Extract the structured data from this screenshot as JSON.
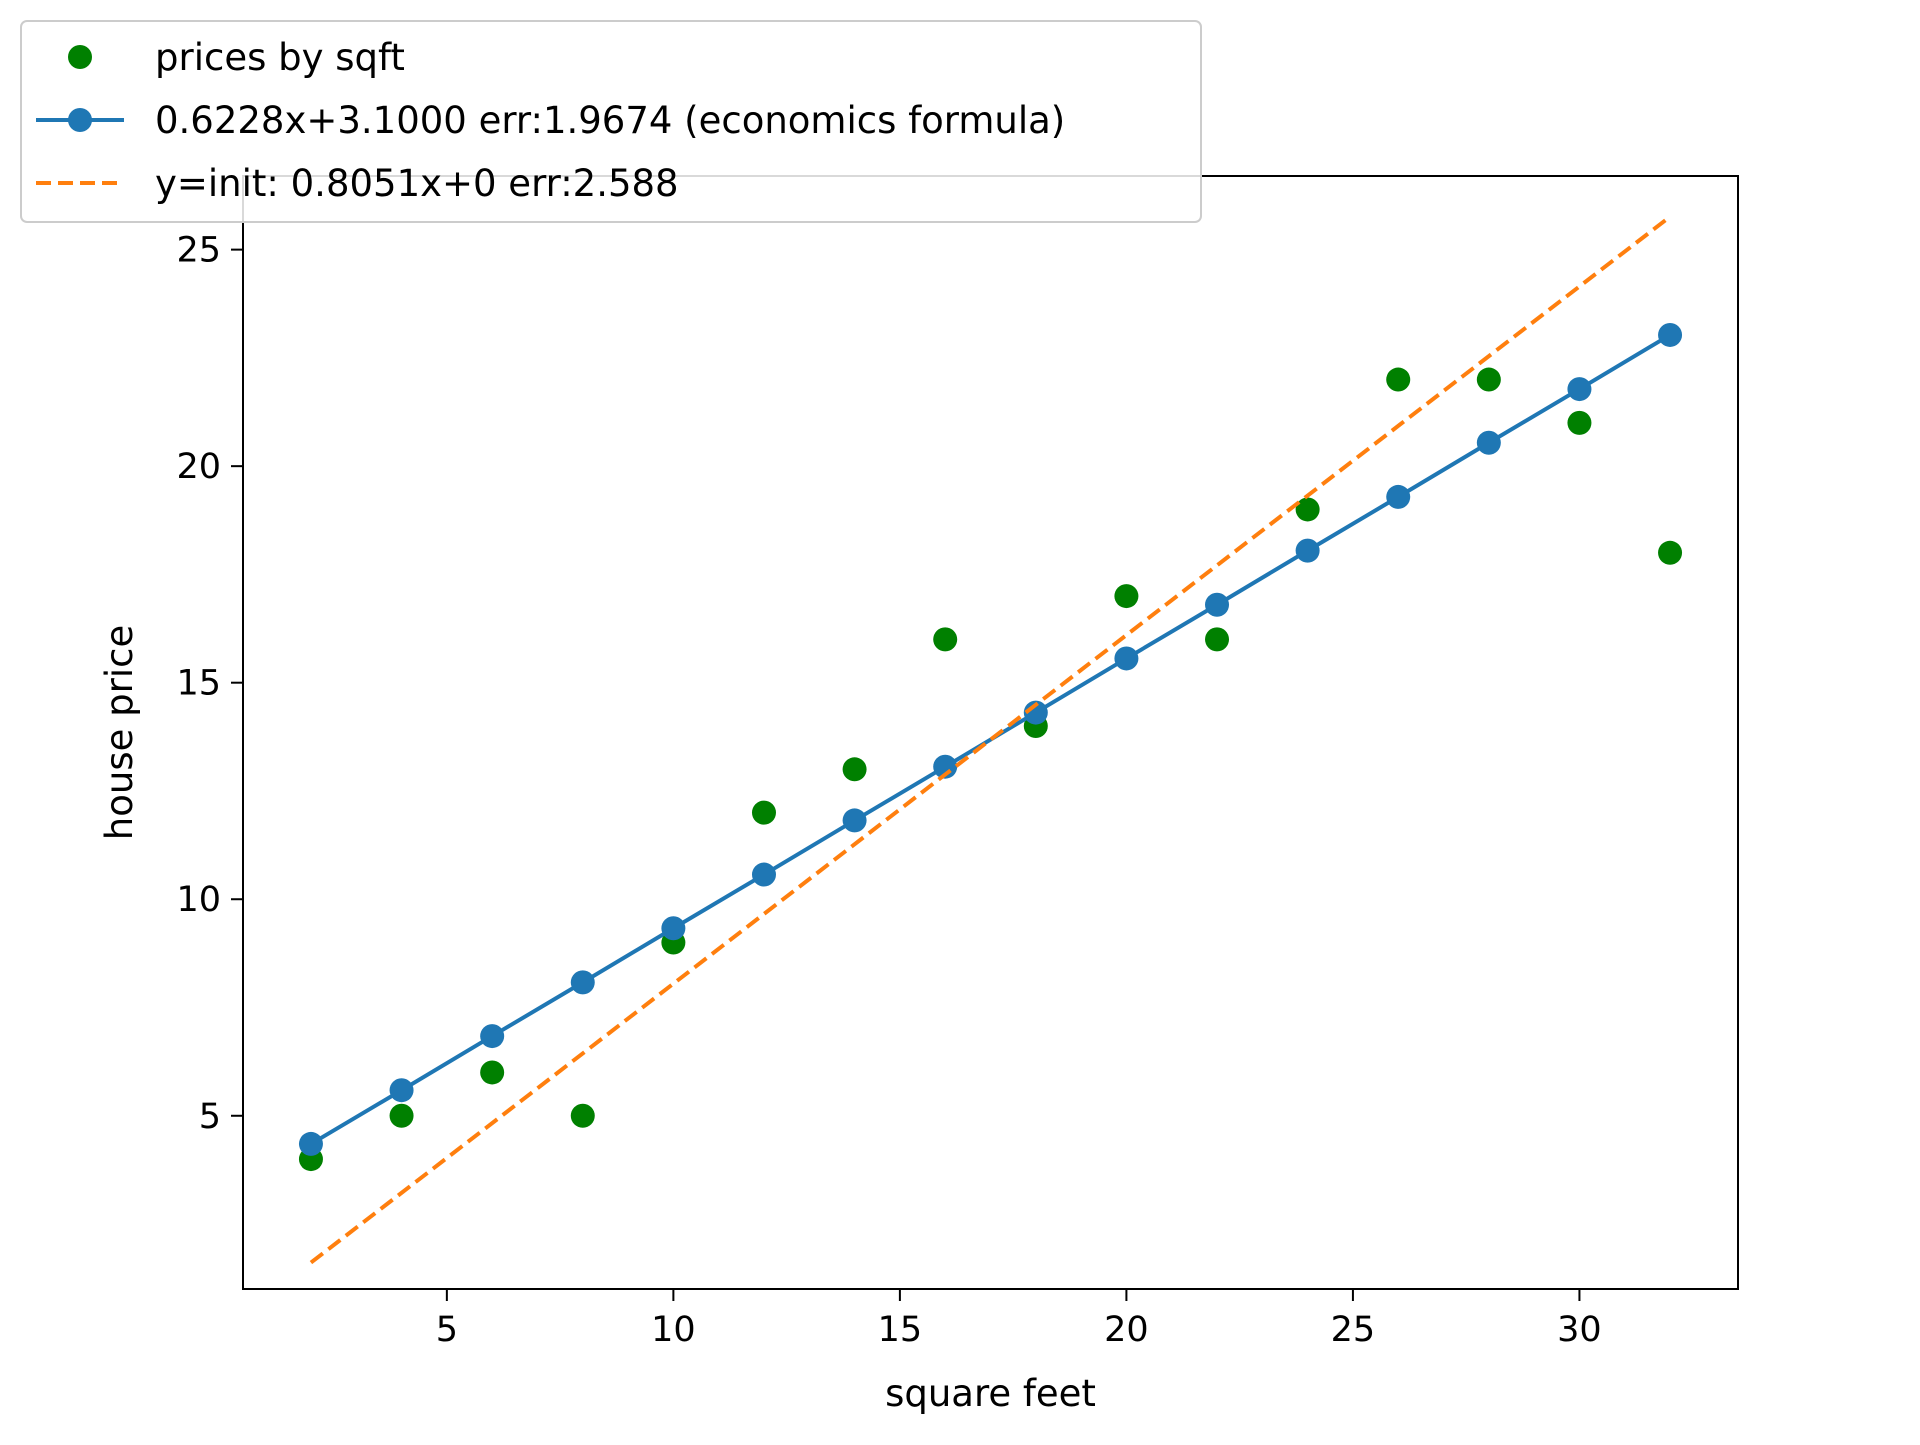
{
  "chart_data": {
    "type": "scatter",
    "title": "",
    "xlabel": "square feet",
    "ylabel": "house price",
    "xlim": [
      0.5,
      33.5
    ],
    "ylim": [
      1.0,
      26.7
    ],
    "xticks": [
      5,
      10,
      15,
      20,
      25,
      30
    ],
    "yticks": [
      5,
      10,
      15,
      20,
      25
    ],
    "grid": false,
    "legend_position": "upper-left",
    "series": [
      {
        "name": "prices by sqft",
        "kind": "points",
        "color": "#008000",
        "x": [
          2,
          4,
          6,
          8,
          10,
          12,
          14,
          16,
          18,
          20,
          22,
          24,
          26,
          28,
          30,
          32
        ],
        "y": [
          4,
          5,
          6,
          5,
          9,
          12,
          13,
          16,
          14,
          17,
          16,
          19,
          22,
          22,
          21,
          18
        ]
      },
      {
        "name": "0.6228x+3.1000 err:1.9674 (economics formula)",
        "kind": "line-markers",
        "color": "#1f77b4",
        "x": [
          2,
          4,
          6,
          8,
          10,
          12,
          14,
          16,
          18,
          20,
          22,
          24,
          26,
          28,
          30,
          32
        ],
        "y": [
          4.35,
          5.59,
          6.84,
          8.08,
          9.33,
          10.57,
          11.82,
          13.06,
          14.31,
          15.56,
          16.8,
          18.05,
          19.29,
          20.54,
          21.78,
          23.03
        ]
      },
      {
        "name": "y=init: 0.8051x+0",
        "label": "y=init: 0.8051x+0 err:2.588",
        "kind": "dashed-line",
        "color": "#ff7f0e",
        "x": [
          2,
          32
        ],
        "y": [
          1.61,
          25.76
        ]
      }
    ]
  }
}
